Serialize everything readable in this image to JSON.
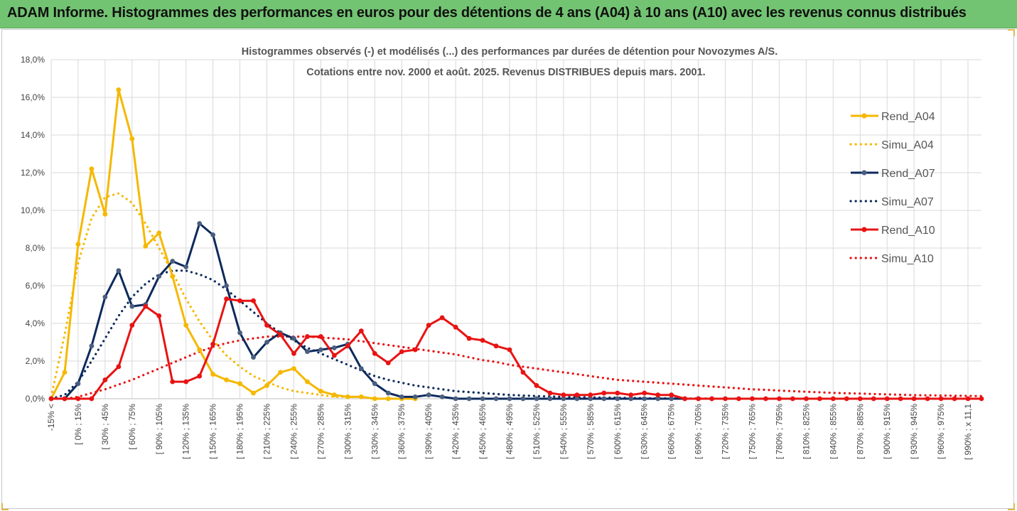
{
  "banner": {
    "title": "ADAM Informe. Histogrammes des performances en euros pour des détentions de 4 ans (A04) à 10 ans (A10) avec les revenus connus distribués"
  },
  "chart_data": {
    "type": "line",
    "title": "Histogrammes observés (-) et modélisés (...) des performances par durées de détention pour Novozymes A/S.",
    "subtitle": "Cotations entre nov. 2000 et août. 2025. Revenus DISTRIBUES depuis mars. 2001.",
    "xlabel": "",
    "ylabel": "",
    "ylim": [
      0,
      18
    ],
    "yticks": [
      "0,0%",
      "2,0%",
      "4,0%",
      "6,0%",
      "8,0%",
      "10,0%",
      "12,0%",
      "14,0%",
      "16,0%",
      "18,0%"
    ],
    "grid": true,
    "legend_position": "right",
    "x_tick_labels": [
      "-15% <",
      "[ 0% ; 15%",
      "[ 30% ; 45%",
      "[ 60% ; 75%",
      "[ 90% ; 105%",
      "[ 120% ; 135%",
      "[ 150% ; 165%",
      "[ 180% ; 195%",
      "[ 210% ; 225%",
      "[ 240% ; 255%",
      "[ 270% ; 285%",
      "[ 300% ; 315%",
      "[ 330% ; 345%",
      "[ 360% ; 375%",
      "[ 390% ; 405%",
      "[ 420% ; 435%",
      "[ 450% ; 465%",
      "[ 480% ; 495%",
      "[ 510% ; 525%",
      "[ 540% ; 555%",
      "[ 570% ; 585%",
      "[ 600% ; 615%",
      "[ 630% ; 645%",
      "[ 660% ; 675%",
      "[ 690% ; 705%",
      "[ 720% ; 735%",
      "[ 750% ; 765%",
      "[ 780% ; 795%",
      "[ 810% ; 825%",
      "[ 840% ; 855%",
      "[ 870% ; 885%",
      "[ 900% ; 915%",
      "[ 930% ; 945%",
      "[ 960% ; 975%",
      "[ 990% ; x 11,1"
    ],
    "n_categories": 70,
    "series": [
      {
        "name": "Rend_A04",
        "style": "solid",
        "color": "#f5b800",
        "values": [
          0.0,
          1.4,
          8.2,
          12.2,
          9.8,
          16.4,
          13.8,
          8.1,
          8.8,
          6.5,
          3.9,
          2.6,
          1.3,
          1.0,
          0.8,
          0.3,
          0.7,
          1.4,
          1.6,
          0.9,
          0.4,
          0.2,
          0.1,
          0.1,
          0.0,
          0.0,
          0.0,
          0.0
        ]
      },
      {
        "name": "Simu_A04",
        "style": "dotted",
        "color": "#f5b800",
        "values": [
          0.1,
          3.4,
          7.2,
          9.6,
          10.7,
          10.9,
          10.4,
          9.3,
          8.0,
          6.7,
          5.3,
          4.1,
          3.1,
          2.3,
          1.7,
          1.2,
          0.9,
          0.6,
          0.4,
          0.3,
          0.2,
          0.1,
          0.1,
          0.1,
          0.0,
          0.0,
          0.0,
          0.0
        ]
      },
      {
        "name": "Rend_A07",
        "style": "solid",
        "color": "#0d2a5c",
        "values": [
          0.0,
          0.0,
          0.8,
          2.8,
          5.4,
          6.8,
          4.9,
          5.0,
          6.5,
          7.3,
          7.0,
          9.3,
          8.7,
          6.0,
          3.5,
          2.2,
          3.0,
          3.5,
          3.2,
          2.5,
          2.6,
          2.7,
          2.9,
          1.6,
          0.8,
          0.3,
          0.1,
          0.1,
          0.2,
          0.1,
          0.0,
          0.0,
          0.0,
          0.0,
          0.0,
          0.0,
          0.0,
          0.0,
          0.0,
          0.0,
          0.0,
          0.0,
          0.0,
          0.0,
          0.0,
          0.0,
          0.0,
          0.0,
          0.0,
          0.0
        ]
      },
      {
        "name": "Simu_A07",
        "style": "dotted",
        "color": "#0d2a5c",
        "values": [
          0.0,
          0.2,
          0.9,
          2.0,
          3.2,
          4.4,
          5.4,
          6.1,
          6.6,
          6.8,
          6.8,
          6.6,
          6.3,
          5.8,
          5.2,
          4.6,
          4.0,
          3.5,
          3.1,
          2.7,
          2.4,
          2.1,
          1.8,
          1.5,
          1.2,
          1.0,
          0.85,
          0.7,
          0.6,
          0.5,
          0.4,
          0.35,
          0.3,
          0.25,
          0.2,
          0.17,
          0.14,
          0.12,
          0.1,
          0.08,
          0.07,
          0.06,
          0.05,
          0.04,
          0.03,
          0.02,
          0.02,
          0.01,
          0.01,
          0.01
        ]
      },
      {
        "name": "Rend_A10",
        "style": "solid",
        "color": "#e81313",
        "values": [
          0.0,
          0.0,
          0.0,
          0.0,
          1.0,
          1.7,
          3.9,
          4.9,
          4.4,
          0.9,
          0.9,
          1.2,
          2.9,
          5.3,
          5.2,
          5.2,
          3.9,
          3.4,
          2.4,
          3.3,
          3.3,
          2.3,
          2.8,
          3.6,
          2.4,
          1.9,
          2.5,
          2.6,
          3.9,
          4.3,
          3.8,
          3.2,
          3.1,
          2.8,
          2.6,
          1.4,
          0.7,
          0.3,
          0.2,
          0.2,
          0.2,
          0.3,
          0.3,
          0.2,
          0.3,
          0.2,
          0.2,
          0.0,
          0.0,
          0.0,
          0.0,
          0.0,
          0.0,
          0.0,
          0.0,
          0.0,
          0.0,
          0.0,
          0.0,
          0.0,
          0.0,
          0.0,
          0.0,
          0.0,
          0.0,
          0.0,
          0.0,
          0.0,
          0.0,
          0.0
        ]
      },
      {
        "name": "Simu_A10",
        "style": "dotted",
        "color": "#e81313",
        "values": [
          0.0,
          0.0,
          0.1,
          0.3,
          0.5,
          0.75,
          1.0,
          1.3,
          1.6,
          1.9,
          2.2,
          2.5,
          2.75,
          2.95,
          3.1,
          3.2,
          3.3,
          3.3,
          3.3,
          3.3,
          3.25,
          3.2,
          3.15,
          3.05,
          2.95,
          2.85,
          2.75,
          2.65,
          2.55,
          2.45,
          2.35,
          2.2,
          2.05,
          1.95,
          1.8,
          1.7,
          1.6,
          1.5,
          1.4,
          1.3,
          1.2,
          1.1,
          1.0,
          0.95,
          0.9,
          0.85,
          0.8,
          0.75,
          0.7,
          0.65,
          0.6,
          0.55,
          0.5,
          0.47,
          0.43,
          0.4,
          0.37,
          0.34,
          0.31,
          0.29,
          0.27,
          0.25,
          0.23,
          0.21,
          0.19,
          0.18,
          0.17,
          0.16,
          0.15,
          0.14
        ]
      }
    ]
  }
}
